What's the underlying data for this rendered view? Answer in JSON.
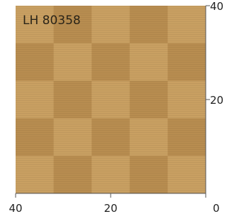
{
  "label": "LH 80358",
  "bottom_scale": [
    40,
    20,
    0
  ],
  "right_scale": [
    40,
    20
  ]
}
